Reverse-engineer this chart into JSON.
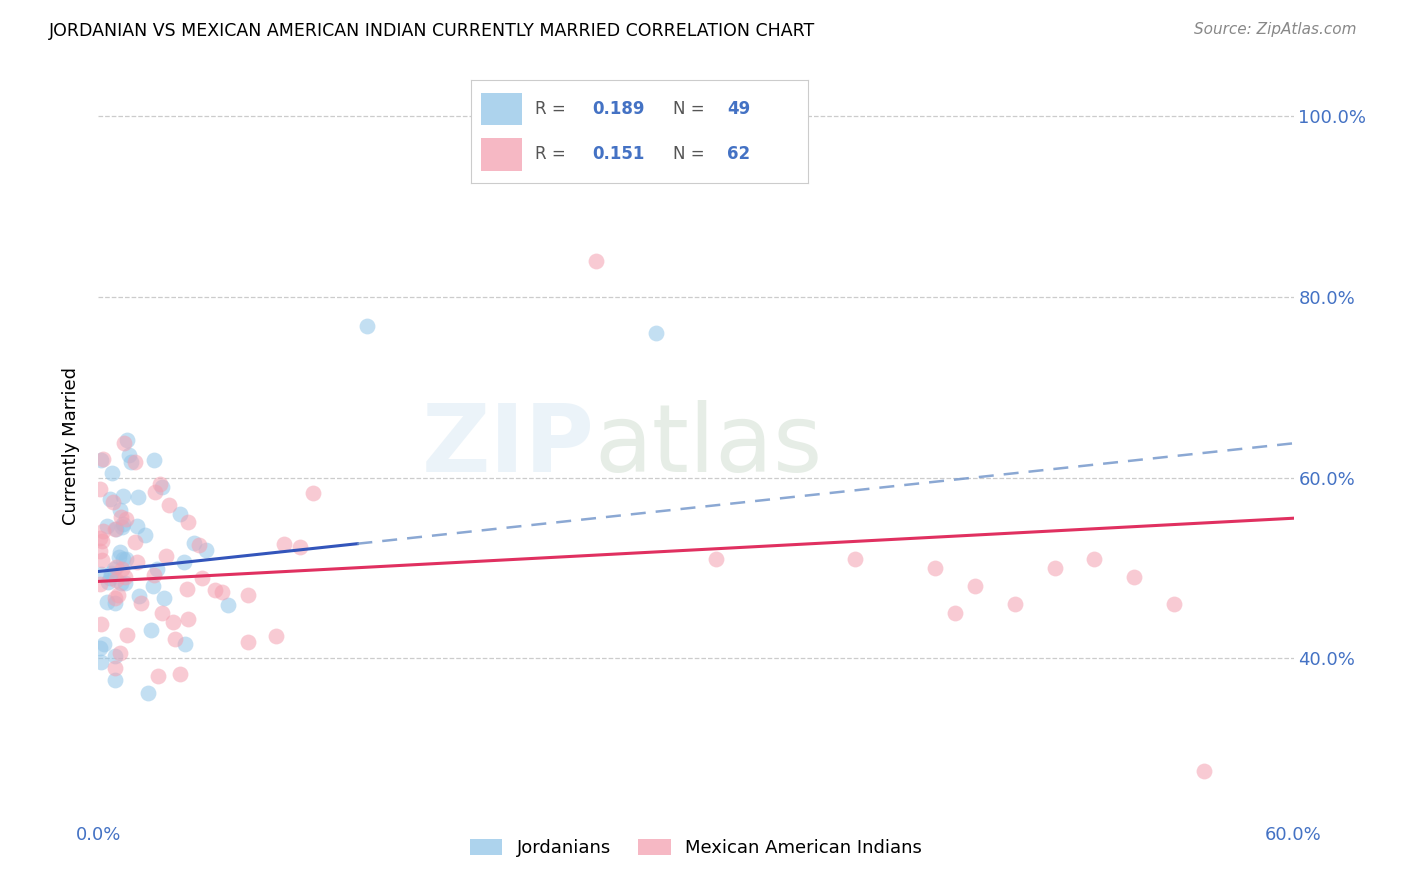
{
  "title": "JORDANIAN VS MEXICAN AMERICAN INDIAN CURRENTLY MARRIED CORRELATION CHART",
  "source": "Source: ZipAtlas.com",
  "ylabel": "Currently Married",
  "xlim": [
    0.0,
    0.6
  ],
  "ylim": [
    0.22,
    1.05
  ],
  "xtick_positions": [
    0.0,
    0.1,
    0.2,
    0.3,
    0.4,
    0.5,
    0.6
  ],
  "xtick_labels": [
    "0.0%",
    "",
    "",
    "",
    "",
    "",
    "60.0%"
  ],
  "ytick_positions": [
    0.4,
    0.6,
    0.8,
    1.0
  ],
  "ytick_labels": [
    "40.0%",
    "60.0%",
    "80.0%",
    "100.0%"
  ],
  "jordanian_color": "#92C5E8",
  "mexican_color": "#F4A0B0",
  "trend_jordan_color": "#3355BB",
  "trend_mexico_color": "#E03060",
  "trend_jordan_dashed_color": "#7799CC",
  "background_color": "#FFFFFF",
  "grid_color": "#CCCCCC",
  "tick_color": "#4472C4",
  "legend_R_jordan": "0.189",
  "legend_N_jordan": "49",
  "legend_R_mexico": "0.151",
  "legend_N_mexico": "62",
  "legend_label_jordan": "Jordanians",
  "legend_label_mexico": "Mexican American Indians",
  "watermark_text": "ZIPatlas",
  "jordan_trend_x0": 0.0,
  "jordan_trend_x_solid_end": 0.13,
  "jordan_trend_x1": 0.6,
  "jordan_trend_y0": 0.496,
  "jordan_trend_y1": 0.638,
  "mexico_trend_x0": 0.0,
  "mexico_trend_x1": 0.6,
  "mexico_trend_y0": 0.485,
  "mexico_trend_y1": 0.555,
  "scatter_alpha": 0.55,
  "scatter_size": 130
}
